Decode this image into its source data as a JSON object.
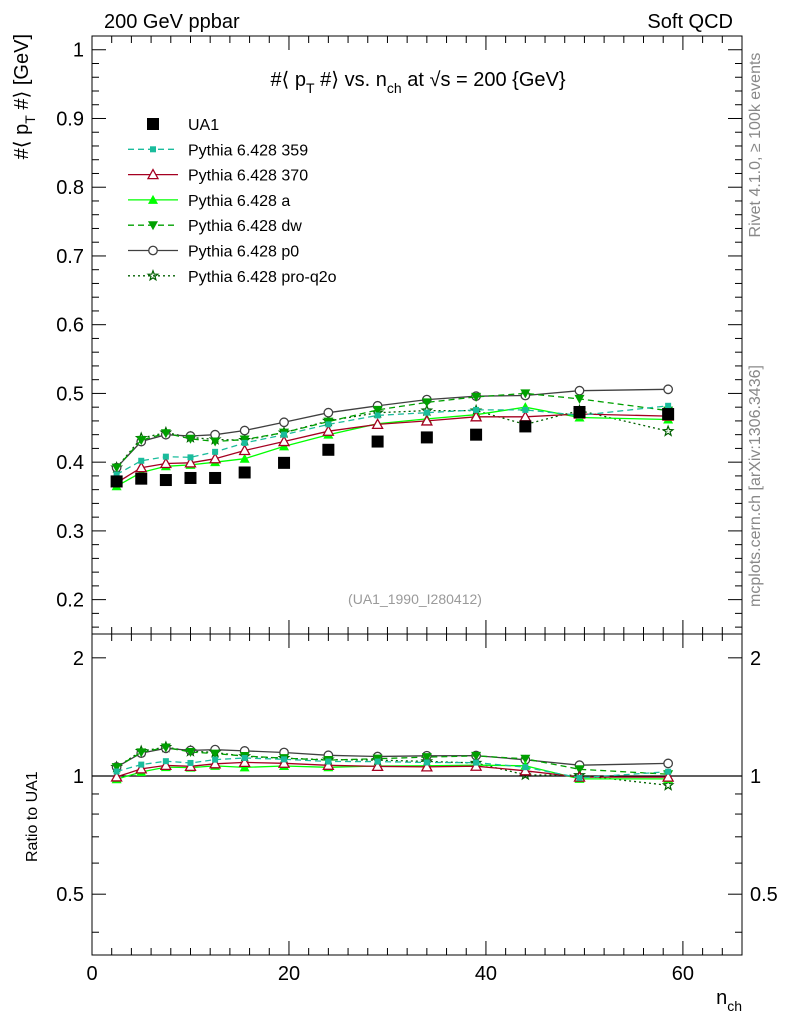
{
  "header": {
    "left": "200 GeV ppbar",
    "right": "Soft QCD"
  },
  "side_labels": {
    "rivet": "Rivet 4.1.0, ≥ 100k events",
    "mcplots": "mcplots.cern.ch [arXiv:1306.3436]"
  },
  "chart_data": {
    "type": "scatter",
    "title_parts": {
      "pre": "#⟨ p",
      "sub": "T",
      "mid": " #⟩ vs. n",
      "sub2": "ch",
      "post": " at √s = 200 {GeV}"
    },
    "ylabel_parts": {
      "pre": "#⟨ p",
      "sub": "T",
      "post": " #⟩ [GeV]"
    },
    "xlabel_parts": {
      "pre": "n",
      "sub": "ch"
    },
    "ratio_ylabel": "Ratio to UA1",
    "watermark": "(UA1_1990_I280412)",
    "xlim": [
      0,
      66
    ],
    "ylim": [
      0.15,
      1.02
    ],
    "ratio_ylim": [
      0.35,
      2.3
    ],
    "x_ticks": [
      0,
      20,
      40,
      60
    ],
    "y_ticks": [
      0.2,
      0.3,
      0.4,
      0.5,
      0.6,
      0.7,
      0.8,
      0.9,
      1
    ],
    "ratio_ticks": [
      0.5,
      1,
      2
    ],
    "x": [
      2.5,
      5.0,
      7.5,
      10.0,
      12.5,
      15.5,
      19.5,
      24.0,
      29.0,
      34.0,
      39.0,
      44.0,
      49.5,
      58.5
    ],
    "series": [
      {
        "name": "UA1",
        "color": "#000000",
        "marker": "square",
        "line": "none",
        "values": [
          0.372,
          0.376,
          0.374,
          0.377,
          0.377,
          0.385,
          0.399,
          0.418,
          0.43,
          0.436,
          0.44,
          0.452,
          0.473,
          0.47
        ]
      },
      {
        "name": "Pythia 6.428 359",
        "color": "#1abc9c",
        "marker": "smallsquare",
        "line": "dashed",
        "values": [
          0.382,
          0.402,
          0.408,
          0.407,
          0.415,
          0.428,
          0.44,
          0.455,
          0.468,
          0.472,
          0.476,
          0.476,
          0.468,
          0.482
        ]
      },
      {
        "name": "Pythia 6.428 370",
        "color": "#a50021",
        "marker": "triangle-open",
        "line": "solid",
        "values": [
          0.37,
          0.392,
          0.398,
          0.399,
          0.405,
          0.417,
          0.43,
          0.445,
          0.455,
          0.46,
          0.466,
          0.466,
          0.47,
          0.467
        ]
      },
      {
        "name": "Pythia 6.428 a",
        "color": "#00ff00",
        "marker": "triangle",
        "line": "solid",
        "values": [
          0.365,
          0.385,
          0.394,
          0.396,
          0.4,
          0.405,
          0.423,
          0.44,
          0.456,
          0.463,
          0.469,
          0.48,
          0.465,
          0.462
        ]
      },
      {
        "name": "Pythia 6.428 dw",
        "color": "#00a000",
        "marker": "triangle-down",
        "line": "dashed",
        "values": [
          0.392,
          0.432,
          0.442,
          0.434,
          0.43,
          0.433,
          0.443,
          0.459,
          0.476,
          0.487,
          0.495,
          0.5,
          0.492,
          0.475
        ]
      },
      {
        "name": "Pythia 6.428 p0",
        "color": "#404040",
        "marker": "circle-open",
        "line": "solid",
        "values": [
          0.392,
          0.43,
          0.44,
          0.438,
          0.44,
          0.446,
          0.458,
          0.472,
          0.482,
          0.491,
          0.496,
          0.497,
          0.504,
          0.506
        ]
      },
      {
        "name": "Pythia 6.428 pro-q2o",
        "color": "#006000",
        "marker": "star",
        "line": "dotted",
        "values": [
          0.392,
          0.435,
          0.443,
          0.436,
          0.433,
          0.432,
          0.443,
          0.46,
          0.472,
          0.475,
          0.475,
          0.455,
          0.475,
          0.445
        ]
      }
    ]
  }
}
